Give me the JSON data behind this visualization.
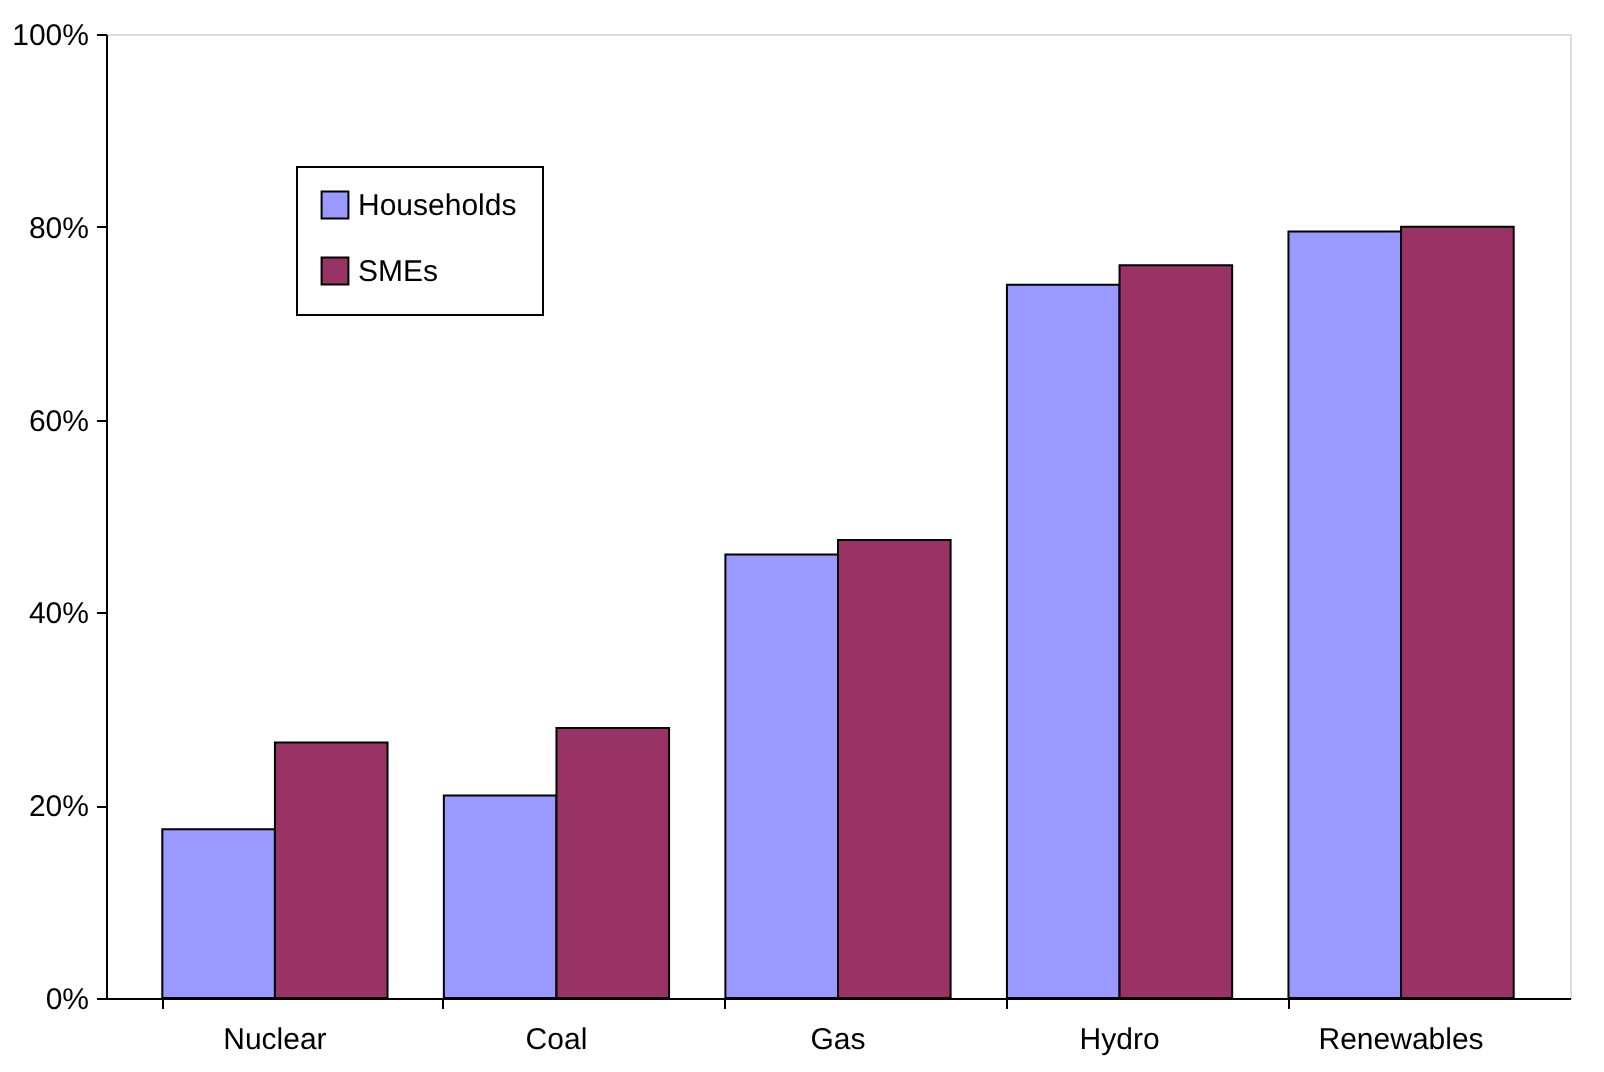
{
  "chart_data": {
    "type": "bar",
    "categories": [
      "Nuclear",
      "Coal",
      "Gas",
      "Hydro",
      "Renewables"
    ],
    "series": [
      {
        "name": "Households",
        "color": "#9999ff",
        "values": [
          17.5,
          21,
          46,
          74,
          79.5
        ]
      },
      {
        "name": "SMEs",
        "color": "#993366",
        "values": [
          26.5,
          28,
          47.5,
          76,
          80
        ]
      }
    ],
    "ylim": [
      0,
      100
    ],
    "yticks": [
      {
        "value": 0,
        "label": "0%"
      },
      {
        "value": 20,
        "label": "20%"
      },
      {
        "value": 40,
        "label": "40%"
      },
      {
        "value": 60,
        "label": "60%"
      },
      {
        "value": 80,
        "label": "80%"
      },
      {
        "value": 100,
        "label": "100%"
      }
    ],
    "legend": "top left",
    "grid": false
  }
}
